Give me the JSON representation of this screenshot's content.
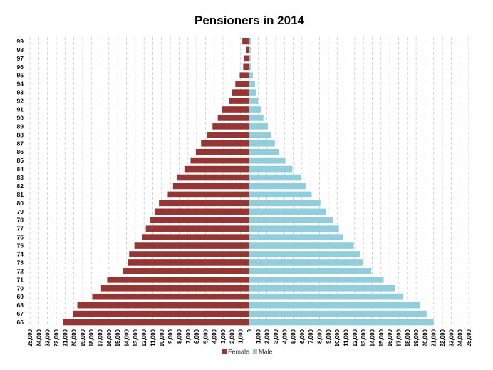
{
  "chart_data": {
    "type": "bar",
    "orientation": "horizontal",
    "title": "Pensioners in 2014",
    "categories": [
      "66",
      "67",
      "68",
      "69",
      "70",
      "71",
      "72",
      "73",
      "74",
      "75",
      "76",
      "77",
      "78",
      "79",
      "80",
      "81",
      "82",
      "83",
      "84",
      "85",
      "86",
      "87",
      "88",
      "89",
      "90",
      "91",
      "92",
      "93",
      "94",
      "95",
      "96",
      "97",
      "98",
      "99"
    ],
    "series": [
      {
        "name": "Female",
        "color": "#943634",
        "values": [
          21200,
          20100,
          19600,
          17900,
          16900,
          16200,
          14400,
          13800,
          13700,
          13100,
          12200,
          11800,
          11300,
          10800,
          10300,
          9300,
          8700,
          8200,
          7400,
          6700,
          6100,
          5500,
          4800,
          4200,
          3600,
          3100,
          2300,
          2000,
          1600,
          1100,
          700,
          600,
          400,
          800
        ]
      },
      {
        "name": "Male",
        "color": "#92CDDC",
        "values": [
          21000,
          20200,
          19400,
          17500,
          16600,
          15300,
          13900,
          12900,
          12600,
          11900,
          10700,
          10200,
          9500,
          8700,
          8100,
          7100,
          6400,
          5900,
          4900,
          4100,
          3400,
          2900,
          2500,
          2100,
          1600,
          1300,
          1000,
          750,
          650,
          400,
          200,
          150,
          150,
          250
        ]
      }
    ],
    "xlim": [
      -25000,
      25000
    ],
    "x_ticks": [
      "25,000",
      "24,000",
      "23,000",
      "22,000",
      "21,000",
      "20,000",
      "19,000",
      "18,000",
      "17,000",
      "16,000",
      "15,000",
      "14,000",
      "13,000",
      "12,000",
      "11,000",
      "10,000",
      "9,000",
      "8,000",
      "7,000",
      "6,000",
      "5,000",
      "4,000",
      "3,000",
      "2,000",
      "1,000",
      "0",
      "1,000",
      "2,000",
      "3,000",
      "4,000",
      "5,000",
      "6,000",
      "7,000",
      "8,000",
      "9,000",
      "10,000",
      "11,000",
      "12,000",
      "13,000",
      "14,000",
      "15,000",
      "16,000",
      "17,000",
      "18,000",
      "19,000",
      "20,000",
      "21,000",
      "22,000",
      "23,000",
      "24,000",
      "25,000"
    ],
    "grid": "vertical dashed",
    "legend": {
      "position": "bottom",
      "entries": [
        "Female",
        "Male"
      ]
    }
  }
}
